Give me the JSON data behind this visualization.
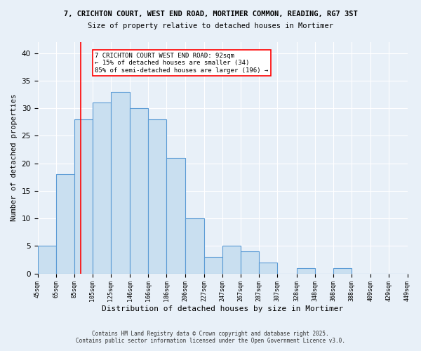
{
  "title1": "7, CRICHTON COURT, WEST END ROAD, MORTIMER COMMON, READING, RG7 3ST",
  "title2": "Size of property relative to detached houses in Mortimer",
  "xlabel": "Distribution of detached houses by size in Mortimer",
  "ylabel": "Number of detached properties",
  "bar_heights": [
    5,
    18,
    28,
    31,
    33,
    30,
    28,
    21,
    10,
    3,
    5,
    4,
    2,
    0,
    1,
    0,
    1,
    0,
    0,
    0
  ],
  "bar_color": "#c9dff0",
  "bar_edge_color": "#5b9bd5",
  "vline_x": 92,
  "vline_color": "red",
  "annotation_text": "7 CRICHTON COURT WEST END ROAD: 92sqm\n← 15% of detached houses are smaller (34)\n85% of semi-detached houses are larger (196) →",
  "annotation_box_color": "white",
  "annotation_box_edge": "red",
  "ylim": [
    0,
    42
  ],
  "yticks": [
    0,
    5,
    10,
    15,
    20,
    25,
    30,
    35,
    40
  ],
  "bin_edges": [
    45,
    65,
    85,
    105,
    125,
    146,
    166,
    186,
    206,
    227,
    247,
    267,
    287,
    307,
    328,
    348,
    368,
    388,
    409,
    429,
    449
  ],
  "footer1": "Contains HM Land Registry data © Crown copyright and database right 2025.",
  "footer2": "Contains public sector information licensed under the Open Government Licence v3.0.",
  "background_color": "#e8f0f8"
}
